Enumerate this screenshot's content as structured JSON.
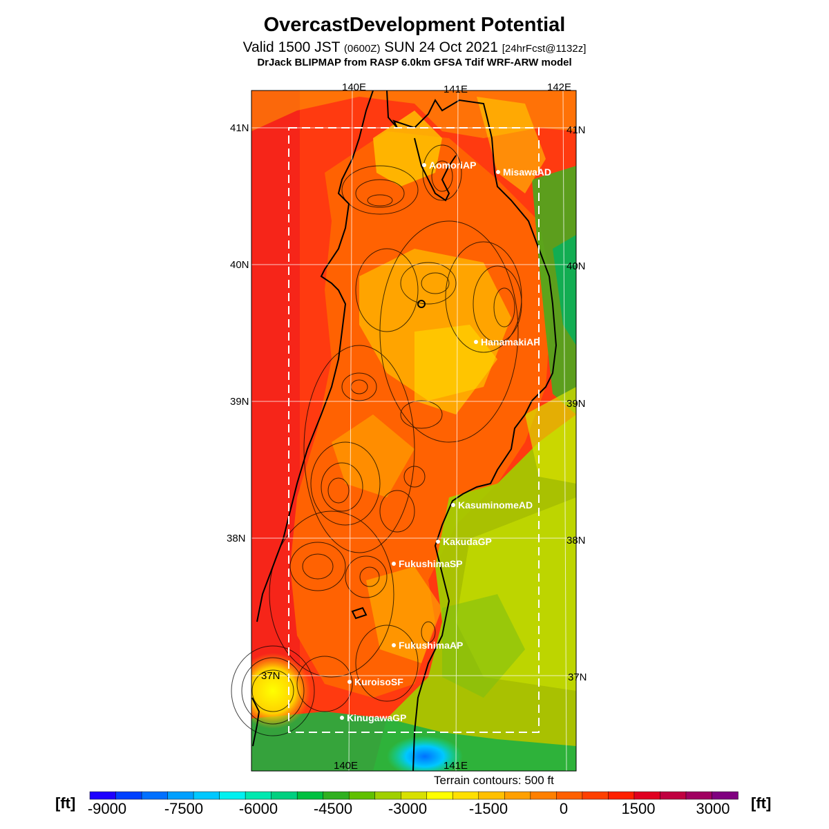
{
  "title": "OvercastDevelopment Potential",
  "subtitle": {
    "valid": "Valid 1500 JST",
    "zulu": "(0600Z)",
    "date": "SUN 24 Oct 2021",
    "forecast": "[24hrFcst@1132z]"
  },
  "model_line": "DrJack BLIPMAP from RASP 6.0km GFSA Tdif WRF-ARW model",
  "terrain_note": "Terrain contours: 500 ft",
  "unit_left": "[ft]",
  "unit_right": "[ft]",
  "map": {
    "lon_labels_top": [
      "140E",
      "141E",
      "142E"
    ],
    "lon_labels_bottom": [
      "140E",
      "141E"
    ],
    "lat_labels_left": [
      "41N",
      "40N",
      "39N",
      "38N",
      "37N"
    ],
    "lat_labels_right": [
      "41N",
      "40N",
      "39N",
      "38N",
      "37N"
    ],
    "stations": [
      {
        "name": "AomoriAP"
      },
      {
        "name": "MisawaAD"
      },
      {
        "name": "HanamakiAP"
      },
      {
        "name": "KasuminomeAD"
      },
      {
        "name": "KakudaGP"
      },
      {
        "name": "FukushimaSP"
      },
      {
        "name": "FukushimaAP"
      },
      {
        "name": "KuroisoSF"
      },
      {
        "name": "KinugawaGP"
      }
    ]
  },
  "colorbar": {
    "tick_labels": [
      "-9000",
      "-7500",
      "-6000",
      "-4500",
      "-3000",
      "-1500",
      "0",
      "1500",
      "3000"
    ],
    "colors": [
      "#1e00ff",
      "#0040ff",
      "#0070ff",
      "#00a0ff",
      "#00c8ff",
      "#00f0f0",
      "#00e8b0",
      "#00d080",
      "#00c040",
      "#30b020",
      "#60c000",
      "#a0d000",
      "#d8e000",
      "#ffff00",
      "#ffe000",
      "#ffc000",
      "#ffa000",
      "#ff8000",
      "#ff6000",
      "#ff4000",
      "#ff2000",
      "#e00020",
      "#c00040",
      "#a00060",
      "#800080"
    ]
  },
  "colors": {
    "background_field": "#ff3010",
    "coast": "#000000",
    "station_text": "#ffffff"
  }
}
